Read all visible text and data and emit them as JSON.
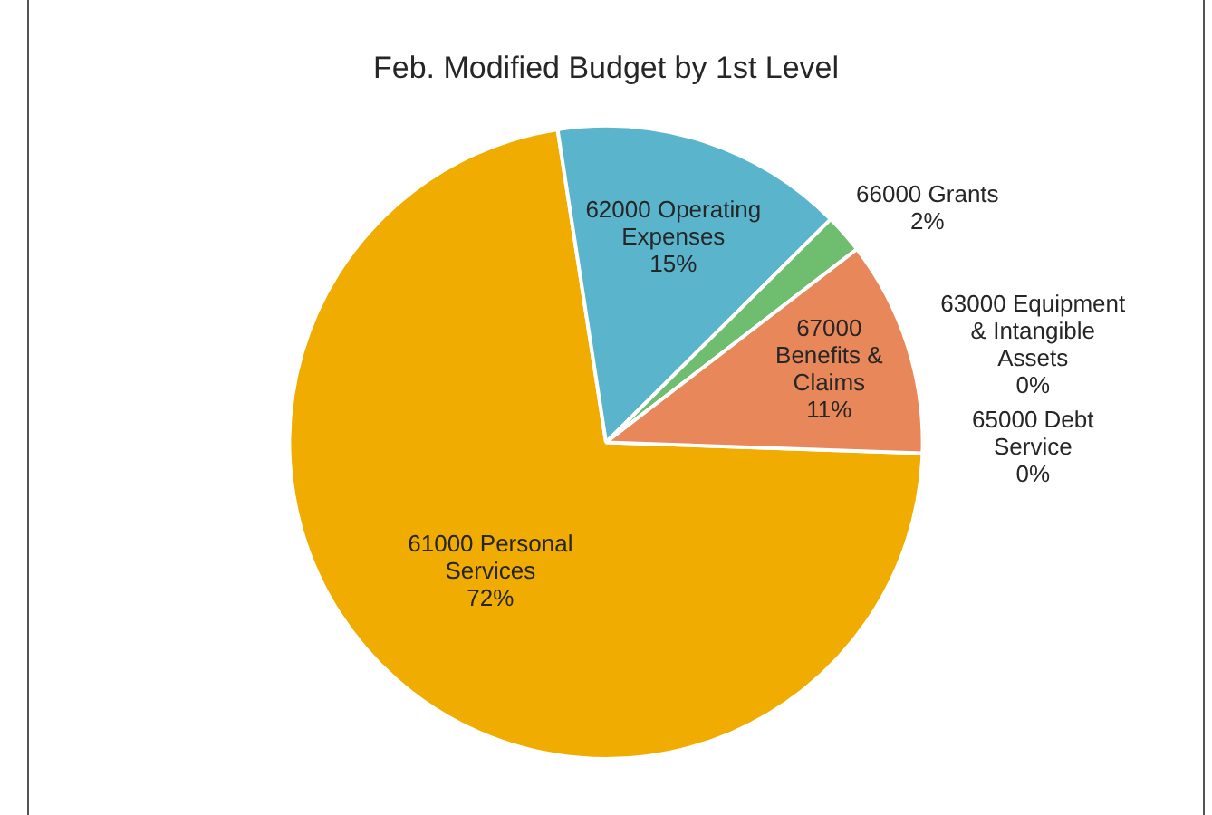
{
  "chart_data": {
    "type": "pie",
    "title": "Feb. Modified Budget by 1st Level",
    "categories": [
      "61000 Personal Services",
      "62000 Operating Expenses",
      "66000 Grants",
      "67000 Benefits & Claims",
      "63000 Equipment & Intangible Assets",
      "65000 Debt Service"
    ],
    "values": [
      72,
      15,
      2,
      11,
      0,
      0
    ],
    "value_labels": [
      "72%",
      "15%",
      "2%",
      "11%",
      "0%",
      "0%"
    ],
    "colors": [
      "#f0ac00",
      "#5ab4cc",
      "#6fbe6f",
      "#e8875a",
      "#a5a5a5",
      "#4472c4"
    ],
    "legend": false
  }
}
